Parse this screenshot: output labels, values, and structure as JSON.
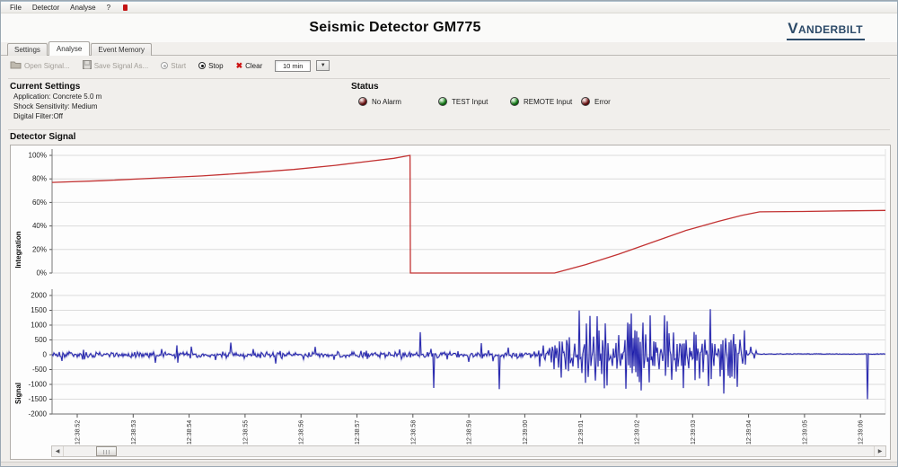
{
  "window": {
    "menu_items": [
      "File",
      "Detector",
      "Analyse",
      "?"
    ],
    "title": "Seismic Detector GM775",
    "brand": "VANDERBILT"
  },
  "tabs": [
    {
      "label": "Settings",
      "active": false
    },
    {
      "label": "Analyse",
      "active": true
    },
    {
      "label": "Event Memory",
      "active": false
    }
  ],
  "toolbar": {
    "open_label": "Open Signal...",
    "save_label": "Save Signal As...",
    "start_label": "Start",
    "stop_label": "Stop",
    "clear_label": "Clear",
    "range_value": "10 min"
  },
  "current_settings": {
    "heading": "Current Settings",
    "lines": [
      "Application: Concrete 5.0 m",
      "Shock Sensitivity: Medium",
      "Digital Filter:Off"
    ]
  },
  "status": {
    "heading": "Status",
    "leds": [
      {
        "label": "No Alarm",
        "color": "#8a0e0e"
      },
      {
        "label": "TEST Input",
        "color": "#0f9c13"
      },
      {
        "label": "REMOTE Input",
        "color": "#0f9c13"
      },
      {
        "label": "Error",
        "color": "#8a0e0e"
      }
    ]
  },
  "detector_signal_heading": "Detector Signal",
  "chart_data": [
    {
      "type": "line",
      "name": "integration",
      "ylabel": "Integration",
      "ytick_labels": [
        "0%",
        "20%",
        "40%",
        "60%",
        "80%",
        "100%"
      ],
      "ytick_values": [
        0,
        20,
        40,
        60,
        80,
        100
      ],
      "ylim": [
        0,
        100
      ],
      "grid": "horizontal",
      "line_color": "#c23232",
      "points": [
        [
          0,
          77
        ],
        [
          0.06,
          78.5
        ],
        [
          0.12,
          80.5
        ],
        [
          0.18,
          82.5
        ],
        [
          0.232,
          85
        ],
        [
          0.29,
          88
        ],
        [
          0.34,
          91.5
        ],
        [
          0.38,
          95
        ],
        [
          0.41,
          97.5
        ],
        [
          0.4295,
          100
        ],
        [
          0.43,
          0
        ],
        [
          0.603,
          0
        ],
        [
          0.64,
          7
        ],
        [
          0.68,
          16
        ],
        [
          0.72,
          26
        ],
        [
          0.76,
          36
        ],
        [
          0.8,
          44
        ],
        [
          0.828,
          49
        ],
        [
          0.849,
          52
        ],
        [
          0.9,
          52.3
        ],
        [
          0.95,
          52.8
        ],
        [
          1,
          53.2
        ]
      ]
    },
    {
      "type": "line",
      "name": "signal",
      "ylabel": "Signal",
      "ytick_labels": [
        "2000",
        "1500",
        "1000",
        "500",
        "0",
        "-500",
        "-1000",
        "-1500",
        "-2000"
      ],
      "ytick_values": [
        2000,
        1500,
        1000,
        500,
        0,
        -500,
        -1000,
        -1500,
        -2000
      ],
      "ylim": [
        -2000,
        2000
      ],
      "grid": "horizontal",
      "line_color": "#1b1baa",
      "x_tick_labels": [
        "12:38:52",
        "12:38:53",
        "12:38:54",
        "12:38:55",
        "12:38:56",
        "12:38:57",
        "12:38:58",
        "12:38:59",
        "12:39:00",
        "12:39:01",
        "12:39:02",
        "12:39:03",
        "12:39:04",
        "12:39:05",
        "12:39:06"
      ],
      "noise_envelope": [
        {
          "from": 0.0,
          "to": 0.435,
          "amp": 110,
          "spike_prob": 0.1,
          "spike_amp": 430
        },
        {
          "from": 0.435,
          "to": 0.575,
          "amp": 115,
          "spike_prob": 0.09,
          "spike_amp": 520
        },
        {
          "from": 0.575,
          "to": 0.845,
          "amp": 330,
          "spike_prob": 0.5,
          "spike_amp": 1750,
          "ramp": true
        },
        {
          "from": 0.845,
          "to": 1.0,
          "amp": 14,
          "spike_prob": 0.0,
          "spike_amp": 0,
          "offset": 25
        }
      ],
      "events": [
        [
          0.442,
          760
        ],
        [
          0.458,
          -1120
        ],
        [
          0.537,
          -1160
        ],
        [
          0.978,
          -1500
        ]
      ]
    }
  ]
}
